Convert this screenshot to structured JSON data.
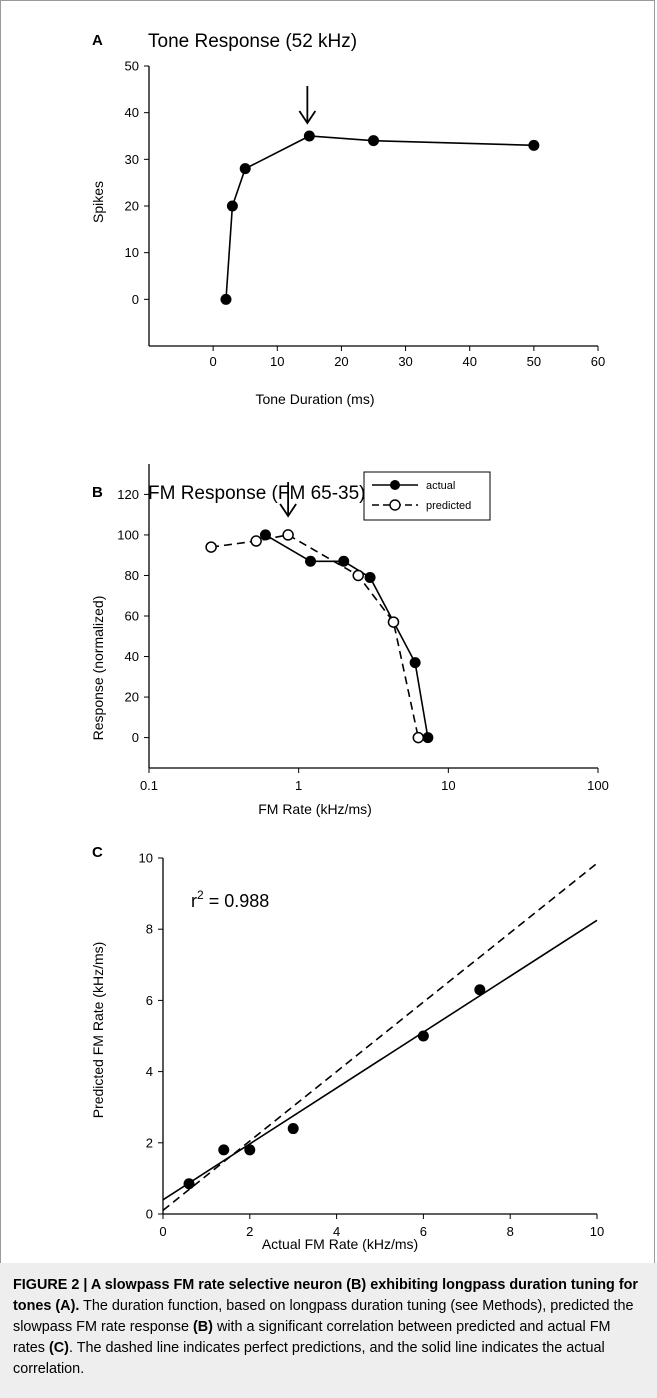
{
  "chart_data": [
    {
      "panel": "A",
      "type": "line",
      "title": "Tone Response (52 kHz)",
      "xlabel": "Tone Duration (ms)",
      "ylabel": "Spikes",
      "xlim": [
        -10,
        60
      ],
      "ylim": [
        -10,
        50
      ],
      "xticks": [
        0,
        10,
        20,
        30,
        40,
        50,
        60
      ],
      "yticks": [
        0,
        10,
        20,
        30,
        40,
        50
      ],
      "series": [
        {
          "x": [
            2,
            3,
            5,
            15,
            25,
            50
          ],
          "y": [
            0,
            20,
            28,
            35,
            34,
            33
          ],
          "marker": "filled-circle",
          "line": "solid"
        }
      ],
      "arrow_at_x": 15,
      "grid": false
    },
    {
      "panel": "B",
      "type": "line",
      "title": "FM Response (FM 65-35)",
      "xlabel": "FM Rate (kHz/ms)",
      "ylabel": "Response (normalized)",
      "xscale": "log",
      "xlim": [
        0.1,
        100
      ],
      "ylim": [
        -15,
        135
      ],
      "xticks": [
        0.1,
        1,
        10,
        100
      ],
      "xtick_labels": [
        "0.1",
        "1",
        "10",
        "100"
      ],
      "yticks": [
        0,
        20,
        40,
        60,
        80,
        100,
        120
      ],
      "series": [
        {
          "name": "actual",
          "marker": "filled-circle",
          "line": "solid",
          "x": [
            0.6,
            1.2,
            2.0,
            3.0,
            6.0,
            7.3
          ],
          "y": [
            100,
            87,
            87,
            79,
            37,
            0
          ]
        },
        {
          "name": "predicted",
          "marker": "open-circle",
          "line": "dashed",
          "x": [
            0.26,
            0.52,
            0.85,
            2.5,
            4.3,
            6.3
          ],
          "y": [
            94,
            97,
            100,
            80,
            57,
            0
          ]
        }
      ],
      "legend": "top-right",
      "arrow_at_x": 0.85,
      "grid": false
    },
    {
      "panel": "C",
      "type": "scatter",
      "title": "",
      "xlabel": "Actual FM Rate (kHz/ms)",
      "ylabel": "Predicted FM Rate (kHz/ms)",
      "xlim": [
        0,
        10
      ],
      "ylim": [
        0,
        10
      ],
      "xticks": [
        0,
        2,
        4,
        6,
        8,
        10
      ],
      "yticks": [
        0,
        2,
        4,
        6,
        8,
        10
      ],
      "series": [
        {
          "x": [
            0.6,
            1.4,
            2.0,
            3.0,
            6.0,
            7.3
          ],
          "y": [
            0.85,
            1.8,
            1.8,
            2.4,
            5.0,
            6.3
          ],
          "marker": "filled-circle"
        }
      ],
      "reference_lines": [
        {
          "style": "dashed",
          "x": [
            0,
            10
          ],
          "y": [
            0.1,
            9.85
          ]
        },
        {
          "style": "solid",
          "x": [
            0,
            10
          ],
          "y": [
            0.4,
            8.25
          ]
        }
      ],
      "annotation_base": "r",
      "annotation_sup": "2",
      "annotation_value": " = 0.988",
      "grid": false
    }
  ],
  "caption": {
    "heading": "FIGURE 2 | A slowpass FM rate selective neuron (B) exhibiting longpass duration tuning for tones (A).",
    "text_1": " The duration function, based on longpass duration tuning (see Methods), predicted the slowpass FM rate response ",
    "ref_b": "(B)",
    "text_2": " with a significant correlation between predicted and actual FM rates ",
    "ref_c": "(C)",
    "text_3": ". The dashed line indicates perfect predictions, and the solid line indicates the actual correlation."
  }
}
